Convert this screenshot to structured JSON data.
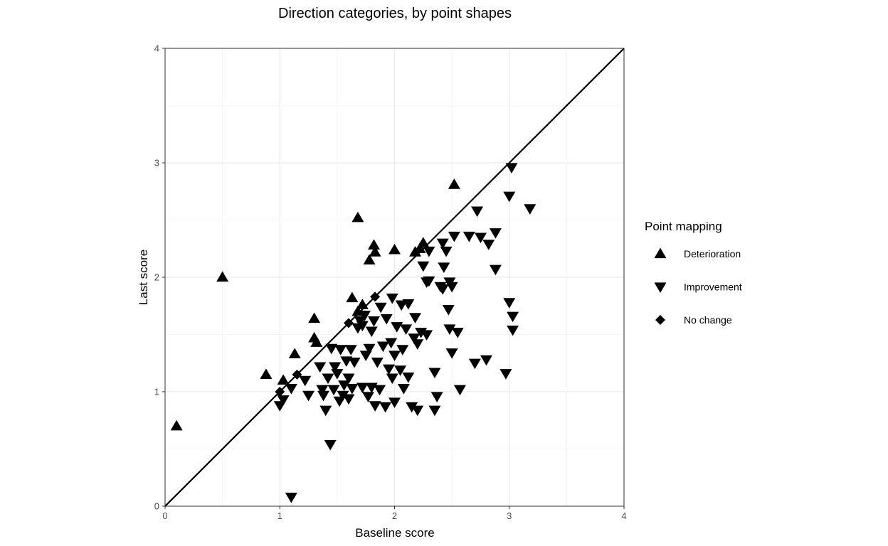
{
  "chart_data": {
    "type": "scatter",
    "title": "Direction categories, by point shapes",
    "xlabel": "Baseline score",
    "ylabel": "Last score",
    "xlim": [
      0,
      4
    ],
    "ylim": [
      0,
      4
    ],
    "x_ticks": [
      "0",
      "1",
      "2",
      "3",
      "4"
    ],
    "y_ticks": [
      "0",
      "1",
      "2",
      "3",
      "4"
    ],
    "grid": true,
    "reference_line": "y = x",
    "legend": {
      "title": "Point mapping",
      "placement": "right",
      "entries": [
        {
          "label": "Deterioration",
          "shape": "triangle-up"
        },
        {
          "label": "Improvement",
          "shape": "triangle-down"
        },
        {
          "label": "No change",
          "shape": "diamond"
        }
      ]
    },
    "series": [
      {
        "name": "Deterioration",
        "shape": "triangle-up",
        "points": [
          [
            0.1,
            0.7
          ],
          [
            0.5,
            2.0
          ],
          [
            0.88,
            1.15
          ],
          [
            1.03,
            1.1
          ],
          [
            1.13,
            1.33
          ],
          [
            1.3,
            1.64
          ],
          [
            1.3,
            1.47
          ],
          [
            1.32,
            1.43
          ],
          [
            1.63,
            1.82
          ],
          [
            1.68,
            2.52
          ],
          [
            1.72,
            1.76
          ],
          [
            1.78,
            2.15
          ],
          [
            1.82,
            2.28
          ],
          [
            1.83,
            2.22
          ],
          [
            2.0,
            2.24
          ],
          [
            2.18,
            2.22
          ],
          [
            2.22,
            2.25
          ],
          [
            2.25,
            2.3
          ],
          [
            2.52,
            2.81
          ],
          [
            1.68,
            1.7
          ]
        ]
      },
      {
        "name": "Improvement",
        "shape": "triangle-down",
        "points": [
          [
            1.0,
            0.88
          ],
          [
            1.03,
            0.93
          ],
          [
            1.1,
            1.03
          ],
          [
            1.1,
            0.08
          ],
          [
            1.22,
            1.1
          ],
          [
            1.25,
            0.97
          ],
          [
            1.35,
            1.22
          ],
          [
            1.37,
            1.02
          ],
          [
            1.38,
            0.97
          ],
          [
            1.4,
            0.84
          ],
          [
            1.42,
            1.12
          ],
          [
            1.44,
            0.54
          ],
          [
            1.45,
            1.38
          ],
          [
            1.47,
            1.02
          ],
          [
            1.48,
            1.22
          ],
          [
            1.5,
            1.16
          ],
          [
            1.52,
            0.92
          ],
          [
            1.53,
            1.37
          ],
          [
            1.55,
            0.97
          ],
          [
            1.56,
            1.06
          ],
          [
            1.58,
            1.27
          ],
          [
            1.6,
            1.12
          ],
          [
            1.62,
            1.37
          ],
          [
            1.63,
            1.03
          ],
          [
            1.65,
            1.26
          ],
          [
            1.68,
            1.56
          ],
          [
            1.7,
            1.62
          ],
          [
            1.72,
            1.04
          ],
          [
            1.74,
            1.67
          ],
          [
            1.75,
            1.32
          ],
          [
            1.77,
            0.96
          ],
          [
            1.78,
            1.38
          ],
          [
            1.8,
            1.04
          ],
          [
            1.8,
            1.53
          ],
          [
            1.82,
            1.62
          ],
          [
            1.83,
            0.88
          ],
          [
            1.85,
            1.26
          ],
          [
            1.87,
            1.02
          ],
          [
            1.88,
            1.74
          ],
          [
            1.9,
            1.4
          ],
          [
            1.92,
            0.87
          ],
          [
            1.93,
            1.64
          ],
          [
            1.95,
            1.2
          ],
          [
            1.97,
            1.43
          ],
          [
            1.98,
            1.12
          ],
          [
            2.0,
            1.32
          ],
          [
            2.0,
            0.91
          ],
          [
            2.02,
            1.57
          ],
          [
            2.05,
            1.19
          ],
          [
            2.07,
            1.37
          ],
          [
            2.08,
            1.03
          ],
          [
            2.1,
            1.55
          ],
          [
            2.12,
            1.13
          ],
          [
            2.15,
            0.87
          ],
          [
            2.17,
            1.47
          ],
          [
            2.18,
            1.65
          ],
          [
            2.2,
            0.84
          ],
          [
            2.2,
            1.42
          ],
          [
            2.23,
            1.52
          ],
          [
            2.25,
            2.1
          ],
          [
            2.28,
            1.5
          ],
          [
            2.3,
            2.23
          ],
          [
            2.35,
            0.84
          ],
          [
            2.35,
            1.17
          ],
          [
            2.37,
            0.96
          ],
          [
            2.4,
            1.92
          ],
          [
            2.42,
            2.3
          ],
          [
            2.43,
            2.09
          ],
          [
            2.45,
            2.23
          ],
          [
            2.47,
            1.72
          ],
          [
            2.48,
            1.55
          ],
          [
            2.5,
            1.34
          ],
          [
            2.5,
            1.92
          ],
          [
            2.52,
            2.36
          ],
          [
            2.55,
            1.52
          ],
          [
            2.57,
            1.02
          ],
          [
            2.65,
            2.36
          ],
          [
            2.7,
            1.25
          ],
          [
            2.72,
            2.58
          ],
          [
            2.75,
            2.35
          ],
          [
            2.8,
            1.28
          ],
          [
            2.82,
            2.29
          ],
          [
            2.88,
            2.07
          ],
          [
            2.88,
            2.39
          ],
          [
            2.97,
            1.16
          ],
          [
            3.0,
            2.71
          ],
          [
            3.0,
            1.78
          ],
          [
            3.02,
            2.96
          ],
          [
            3.03,
            1.66
          ],
          [
            3.03,
            1.54
          ],
          [
            3.18,
            2.6
          ],
          [
            1.6,
            0.94
          ],
          [
            1.72,
            1.58
          ],
          [
            1.98,
            1.82
          ],
          [
            2.06,
            1.76
          ],
          [
            2.12,
            1.77
          ],
          [
            2.28,
            1.96
          ],
          [
            2.3,
            1.97
          ],
          [
            2.42,
            1.9
          ],
          [
            2.48,
            1.96
          ]
        ]
      },
      {
        "name": "No change",
        "shape": "diamond",
        "points": [
          [
            1.0,
            1.0
          ],
          [
            1.15,
            1.15
          ],
          [
            1.83,
            1.83
          ],
          [
            1.6,
            1.6
          ]
        ]
      }
    ]
  }
}
